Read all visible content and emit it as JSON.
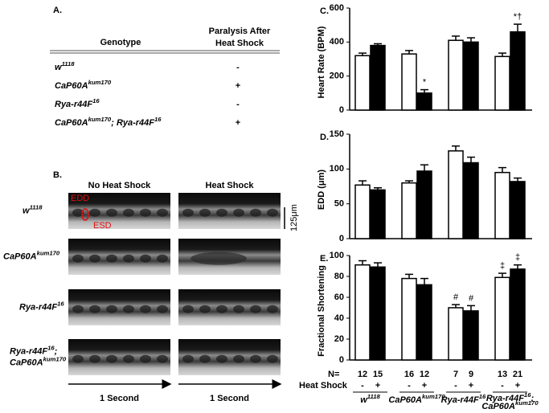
{
  "panel_a": {
    "label": "A.",
    "header": {
      "genotype": "Genotype",
      "paralysis": [
        "Paralysis After",
        "Heat Shock"
      ]
    },
    "rows": [
      {
        "genotype": [
          "w",
          "1118"
        ],
        "paralysis": "-"
      },
      {
        "genotype": [
          "CaP60A",
          "kum170"
        ],
        "paralysis": "+"
      },
      {
        "genotype": [
          "Rya-r44F",
          "16"
        ],
        "paralysis": "-"
      },
      {
        "genotype": [
          "CaP60A",
          "kum170",
          "; Rya-r44F",
          "16"
        ],
        "paralysis": "+"
      }
    ]
  },
  "panel_b": {
    "label": "B.",
    "columns": [
      "No Heat Shock",
      "Heat Shock"
    ],
    "rows": [
      [
        [
          "w",
          "1118"
        ]
      ],
      [
        [
          "CaP60A",
          "kum170"
        ]
      ],
      [
        [
          "Rya-r44F",
          "16"
        ]
      ],
      [
        [
          "Rya-r44F",
          "16",
          ";"
        ],
        [
          "CaP60A",
          "kum170"
        ]
      ]
    ],
    "edd": "EDD",
    "esd": "ESD",
    "scale": "125μm",
    "time": [
      "1 Second",
      "1 Second"
    ]
  },
  "chart_data": [
    {
      "type": "bar",
      "label": "C.",
      "y_label": "Heart Rate (BPM)",
      "ylim": [
        0,
        600
      ],
      "yticks": [
        0,
        200,
        400,
        600
      ],
      "series": [
        {
          "color": "#ffffff",
          "values": [
            320,
            330,
            410,
            315
          ],
          "errors": [
            15,
            20,
            25,
            20
          ]
        },
        {
          "color": "#000000",
          "values": [
            380,
            100,
            400,
            460
          ],
          "errors": [
            10,
            20,
            25,
            45
          ],
          "annotations": [
            null,
            "*",
            null,
            "*†"
          ]
        }
      ]
    },
    {
      "type": "bar",
      "label": "D.",
      "y_label": "EDD (μm)",
      "ylim": [
        0,
        150
      ],
      "yticks": [
        0,
        50,
        100,
        150
      ],
      "series": [
        {
          "color": "#ffffff",
          "values": [
            77,
            80,
            126,
            95
          ],
          "errors": [
            6,
            3,
            7,
            7
          ]
        },
        {
          "color": "#000000",
          "values": [
            70,
            97,
            109,
            82
          ],
          "errors": [
            3,
            9,
            8,
            5
          ]
        }
      ]
    },
    {
      "type": "bar",
      "label": "E.",
      "y_label": "Fractional Shortening",
      "ylim": [
        0,
        100
      ],
      "yticks": [
        0,
        20,
        40,
        60,
        80,
        100
      ],
      "series": [
        {
          "color": "#ffffff",
          "values": [
            91,
            78,
            50,
            79
          ],
          "errors": [
            4,
            4,
            3,
            4
          ],
          "annotations": [
            null,
            null,
            "#",
            "‡"
          ]
        },
        {
          "color": "#000000",
          "values": [
            89,
            72,
            47,
            87
          ],
          "errors": [
            4,
            6,
            5,
            4
          ],
          "annotations": [
            null,
            null,
            "#",
            "‡"
          ]
        }
      ]
    }
  ],
  "x_table": {
    "n_label": "N=",
    "n": [
      12,
      15,
      16,
      12,
      7,
      9,
      13,
      21
    ],
    "heat_shock_label": "Heat Shock",
    "heat_shock": [
      "-",
      "+",
      "-",
      "+",
      "-",
      "+",
      "-",
      "+"
    ],
    "genotypes": [
      [
        [
          "w",
          "1118"
        ]
      ],
      [
        [
          "CaP60A",
          "kum170"
        ]
      ],
      [
        [
          "Rya-r44F",
          "16"
        ]
      ],
      [
        [
          "Rya-r44F",
          "16",
          ";"
        ],
        [
          "CaP60A",
          "kum170"
        ]
      ]
    ]
  }
}
